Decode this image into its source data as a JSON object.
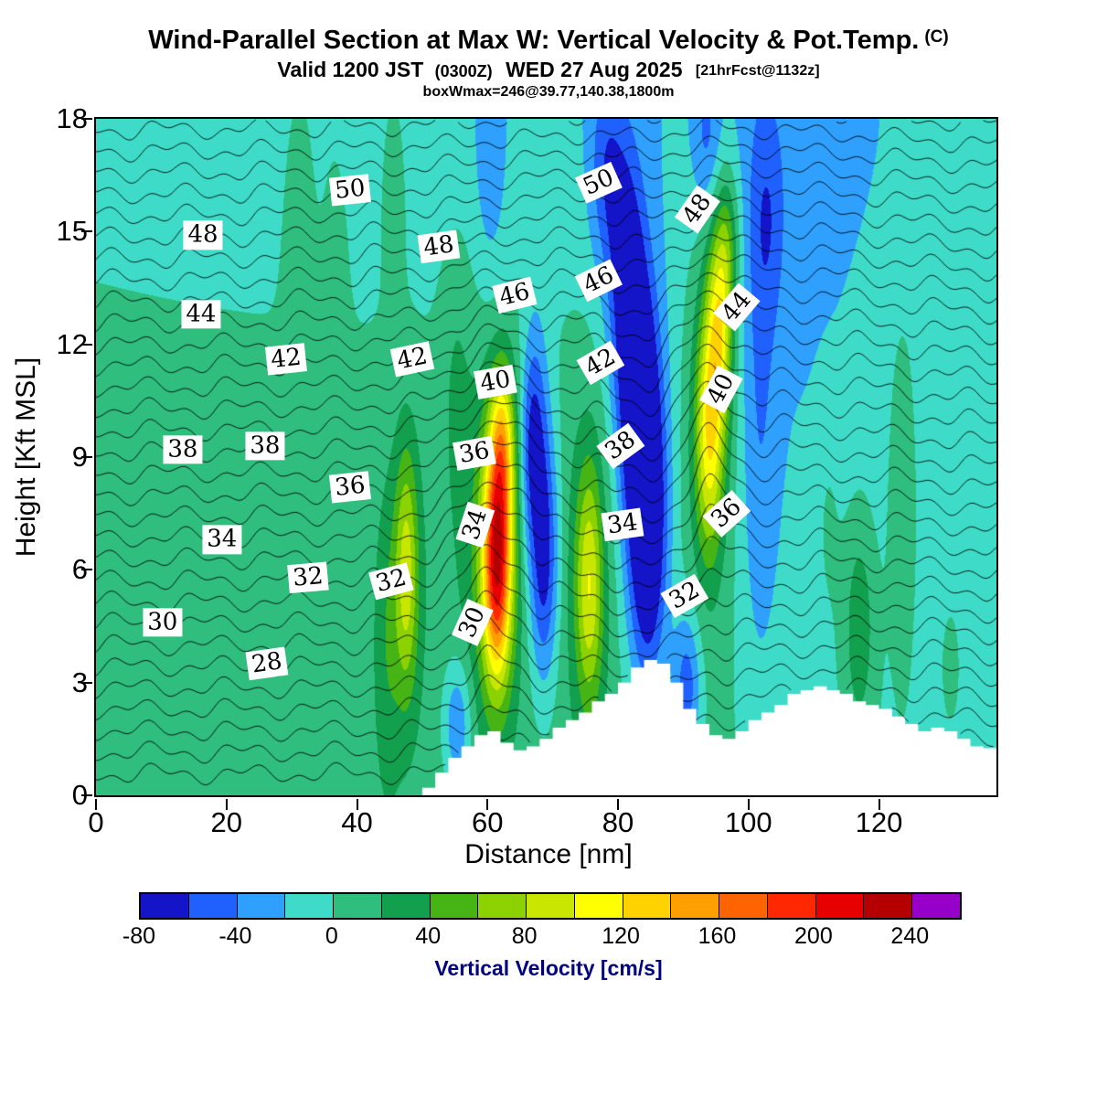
{
  "header": {
    "title_main": "Wind-Parallel Section at Max W: Vertical Velocity & Pot.Temp.",
    "title_unit": "(C)",
    "valid_prefix": "Valid 1200 JST",
    "valid_small1": "(0300Z)",
    "valid_mid": "WED 27 Aug 2025",
    "valid_small2": "[21hrFcst@1132z]",
    "info_line": "boxWmax=246@39.77,140.38,1800m"
  },
  "axes": {
    "x": {
      "label": "Distance [nm]",
      "min": 0,
      "max": 138,
      "ticks": [
        0,
        20,
        40,
        60,
        80,
        100,
        120
      ]
    },
    "y": {
      "label": "Height [Kft MSL]",
      "min": 0,
      "max": 18,
      "ticks": [
        0,
        3,
        6,
        9,
        12,
        15,
        18
      ]
    }
  },
  "colorbar": {
    "label": "Vertical Velocity [cm/s]",
    "min": -80,
    "max": 260,
    "step": 20,
    "tick_labels": [
      -80,
      -40,
      0,
      40,
      80,
      120,
      160,
      200,
      240
    ],
    "colors": [
      "#1414c8",
      "#2060ff",
      "#30a0ff",
      "#3edcc8",
      "#2fbe7d",
      "#12a04e",
      "#46b414",
      "#8cd200",
      "#c8e600",
      "#ffff00",
      "#ffd200",
      "#ffa000",
      "#ff6400",
      "#ff2800",
      "#e60000",
      "#b40000",
      "#9600c8"
    ]
  },
  "chart_data": {
    "type": "heatmap",
    "field_name": "vertical velocity (cm/s) filled contours with potential temperature (C) line contours",
    "xlim": [
      0,
      138
    ],
    "ylim": [
      0,
      18
    ],
    "base_w": 10,
    "cells": [
      {
        "x": 60,
        "z": 21,
        "sx": 80,
        "sz": 6,
        "a": -28
      },
      {
        "x": 135,
        "z": 7,
        "sx": 22,
        "sz": 9,
        "a": -24
      },
      {
        "x": 104,
        "z": 12,
        "sx": 9,
        "sz": 8,
        "a": -16
      },
      {
        "x": 61.5,
        "z": 6.2,
        "sx": 1.5,
        "sz": 2.1,
        "a": 175
      },
      {
        "x": 62.3,
        "z": 9.4,
        "sx": 1.3,
        "sz": 1.5,
        "a": 85
      },
      {
        "x": 60.8,
        "z": 6.6,
        "sx": 3.0,
        "sz": 3.4,
        "a": 45
      },
      {
        "x": 47.6,
        "z": 6.0,
        "sx": 1.2,
        "sz": 2.3,
        "a": 62
      },
      {
        "x": 47.2,
        "z": 5.6,
        "sx": 2.4,
        "sz": 3.0,
        "a": 22
      },
      {
        "x": 75.6,
        "z": 5.6,
        "sx": 1.4,
        "sz": 2.2,
        "a": 70
      },
      {
        "x": 75.6,
        "z": 6.0,
        "sx": 2.8,
        "sz": 3.4,
        "a": 25
      },
      {
        "x": 94.0,
        "z": 9.6,
        "sx": 1.5,
        "sz": 2.2,
        "a": 95
      },
      {
        "x": 95.6,
        "z": 12.6,
        "sx": 1.4,
        "sz": 1.9,
        "a": 90
      },
      {
        "x": 94.2,
        "z": 10.6,
        "sx": 3.2,
        "sz": 4.4,
        "a": 30
      },
      {
        "x": 96.8,
        "z": 14.8,
        "sx": 1.3,
        "sz": 1.4,
        "a": 40
      },
      {
        "x": 44.6,
        "z": 3.6,
        "sx": 1.4,
        "sz": 2.8,
        "a": 20
      },
      {
        "x": 55.2,
        "z": 11.2,
        "sx": 1.7,
        "sz": 2.8,
        "a": 18
      },
      {
        "x": 31.2,
        "z": 15.8,
        "sx": 1.7,
        "sz": 2.8,
        "a": 22
      },
      {
        "x": 36.6,
        "z": 14.8,
        "sx": 1.4,
        "sz": 2.4,
        "a": 16
      },
      {
        "x": 45.6,
        "z": 16.4,
        "sx": 1.3,
        "sz": 2.0,
        "a": 24
      },
      {
        "x": 117.0,
        "z": 4.6,
        "sx": 2.0,
        "sz": 2.4,
        "a": 42
      },
      {
        "x": 123.6,
        "z": 8.0,
        "sx": 1.7,
        "sz": 3.8,
        "a": 30
      },
      {
        "x": 112.2,
        "z": 7.4,
        "sx": 1.4,
        "sz": 2.0,
        "a": 16
      },
      {
        "x": 131.0,
        "z": 3.6,
        "sx": 1.4,
        "sz": 1.5,
        "a": 18
      },
      {
        "x": 68.6,
        "z": 6.4,
        "sx": 1.6,
        "sz": 2.4,
        "a": -82
      },
      {
        "x": 67.4,
        "z": 10.0,
        "sx": 1.3,
        "sz": 2.0,
        "a": -46
      },
      {
        "x": 84.6,
        "z": 7.0,
        "sx": 2.0,
        "sz": 2.8,
        "a": -92
      },
      {
        "x": 83.0,
        "z": 10.6,
        "sx": 1.9,
        "sz": 2.4,
        "a": -78
      },
      {
        "x": 81.2,
        "z": 14.0,
        "sx": 1.9,
        "sz": 2.4,
        "a": -58
      },
      {
        "x": 83.6,
        "z": 9.5,
        "sx": 3.8,
        "sz": 4.8,
        "a": -26
      },
      {
        "x": 101.6,
        "z": 10.0,
        "sx": 2.0,
        "sz": 5.0,
        "a": -26
      },
      {
        "x": 103.0,
        "z": 15.4,
        "sx": 1.8,
        "sz": 2.0,
        "a": -26
      },
      {
        "x": 90.6,
        "z": 2.9,
        "sx": 1.5,
        "sz": 1.4,
        "a": -55
      },
      {
        "x": 55.4,
        "z": 1.9,
        "sx": 1.5,
        "sz": 1.2,
        "a": -48
      },
      {
        "x": 78.2,
        "z": 16.6,
        "sx": 1.9,
        "sz": 1.9,
        "a": -40
      },
      {
        "x": 93.6,
        "z": 17.4,
        "sx": 1.5,
        "sz": 1.5,
        "a": -32
      },
      {
        "x": 66.2,
        "z": 9.0,
        "sx": 1.0,
        "sz": 1.8,
        "a": -30
      },
      {
        "x": 60.5,
        "z": 16.5,
        "sx": 1.6,
        "sz": 2.2,
        "a": -22
      }
    ],
    "terrain_steps": [
      [
        50,
        0.2
      ],
      [
        52,
        0.6
      ],
      [
        54,
        1.0
      ],
      [
        56,
        1.3
      ],
      [
        58,
        1.6
      ],
      [
        60,
        1.7
      ],
      [
        62,
        1.4
      ],
      [
        64,
        1.2
      ],
      [
        66,
        1.3
      ],
      [
        68,
        1.5
      ],
      [
        70,
        1.8
      ],
      [
        72,
        2.0
      ],
      [
        74,
        2.2
      ],
      [
        76,
        2.5
      ],
      [
        78,
        2.7
      ],
      [
        80,
        3.0
      ],
      [
        82,
        3.4
      ],
      [
        84,
        3.6
      ],
      [
        86,
        3.5
      ],
      [
        88,
        3.0
      ],
      [
        90,
        2.3
      ],
      [
        92,
        1.9
      ],
      [
        94,
        1.6
      ],
      [
        96,
        1.5
      ],
      [
        98,
        1.7
      ],
      [
        100,
        2.0
      ],
      [
        102,
        2.2
      ],
      [
        104,
        2.4
      ],
      [
        106,
        2.7
      ],
      [
        108,
        2.8
      ],
      [
        110,
        2.9
      ],
      [
        112,
        2.8
      ],
      [
        114,
        2.7
      ],
      [
        116,
        2.5
      ],
      [
        118,
        2.4
      ],
      [
        120,
        2.3
      ],
      [
        122,
        2.1
      ],
      [
        124,
        1.9
      ],
      [
        126,
        1.7
      ],
      [
        128,
        1.8
      ],
      [
        130,
        1.7
      ],
      [
        132,
        1.5
      ],
      [
        134,
        1.3
      ],
      [
        136,
        1.25
      ],
      [
        138,
        1.3
      ]
    ],
    "isentropes": {
      "base": 22,
      "lapse": 1.75,
      "level_min": 23,
      "level_max": 54,
      "level_step": 1,
      "perturbations": [
        {
          "x": 61,
          "z": 7.5,
          "sx": 4,
          "sz": 3.5,
          "a": -2.4
        },
        {
          "x": 84,
          "z": 9,
          "sx": 4,
          "sz": 5,
          "a": 1.2
        },
        {
          "x": 95,
          "z": 13,
          "sx": 26,
          "sz": 5,
          "a": -1.6
        },
        {
          "x": 94,
          "z": 10,
          "sx": 3,
          "sz": 3.5,
          "a": -1.6
        },
        {
          "x": 120,
          "z": 3,
          "sx": 16,
          "sz": 3,
          "a": -0.8
        }
      ],
      "ripple": {
        "a1": 0.3,
        "f1": 0.45,
        "zf": 0.7,
        "a2": 0.22,
        "f2": 1.1,
        "p2": 2.0
      }
    },
    "contour_labels": [
      {
        "t": "50",
        "x": 39.0,
        "z": 16.1,
        "r": -6
      },
      {
        "t": "50",
        "x": 77.0,
        "z": 16.3,
        "r": -24
      },
      {
        "t": "48",
        "x": 16.4,
        "z": 14.9,
        "r": 0
      },
      {
        "t": "48",
        "x": 52.5,
        "z": 14.6,
        "r": -8
      },
      {
        "t": "48",
        "x": 92.2,
        "z": 15.6,
        "r": -55
      },
      {
        "t": "46",
        "x": 64.2,
        "z": 13.3,
        "r": -14
      },
      {
        "t": "46",
        "x": 77.0,
        "z": 13.7,
        "r": -26
      },
      {
        "t": "44",
        "x": 16.1,
        "z": 12.8,
        "r": 0
      },
      {
        "t": "44",
        "x": 98.2,
        "z": 13.0,
        "r": -50
      },
      {
        "t": "42",
        "x": 29.1,
        "z": 11.6,
        "r": -6
      },
      {
        "t": "42",
        "x": 48.5,
        "z": 11.6,
        "r": -12
      },
      {
        "t": "42",
        "x": 77.3,
        "z": 11.5,
        "r": -30
      },
      {
        "t": "40",
        "x": 61.2,
        "z": 11.0,
        "r": -10
      },
      {
        "t": "40",
        "x": 95.8,
        "z": 10.8,
        "r": -62
      },
      {
        "t": "38",
        "x": 13.3,
        "z": 9.2,
        "r": 0
      },
      {
        "t": "38",
        "x": 25.9,
        "z": 9.3,
        "r": 0
      },
      {
        "t": "38",
        "x": 80.4,
        "z": 9.3,
        "r": -36
      },
      {
        "t": "36",
        "x": 39.0,
        "z": 8.2,
        "r": -6
      },
      {
        "t": "36",
        "x": 58.0,
        "z": 9.1,
        "r": -10
      },
      {
        "t": "36",
        "x": 96.7,
        "z": 7.5,
        "r": -42
      },
      {
        "t": "34",
        "x": 19.3,
        "z": 6.8,
        "r": 0
      },
      {
        "t": "34",
        "x": 58.2,
        "z": 7.2,
        "r": -72
      },
      {
        "t": "34",
        "x": 80.7,
        "z": 7.2,
        "r": -8
      },
      {
        "t": "32",
        "x": 32.5,
        "z": 5.8,
        "r": -5
      },
      {
        "t": "32",
        "x": 45.3,
        "z": 5.7,
        "r": -15
      },
      {
        "t": "32",
        "x": 90.2,
        "z": 5.3,
        "r": -30
      },
      {
        "t": "30",
        "x": 10.2,
        "z": 4.6,
        "r": 0
      },
      {
        "t": "30",
        "x": 57.7,
        "z": 4.6,
        "r": -66
      },
      {
        "t": "28",
        "x": 26.2,
        "z": 3.5,
        "r": -8
      }
    ]
  }
}
